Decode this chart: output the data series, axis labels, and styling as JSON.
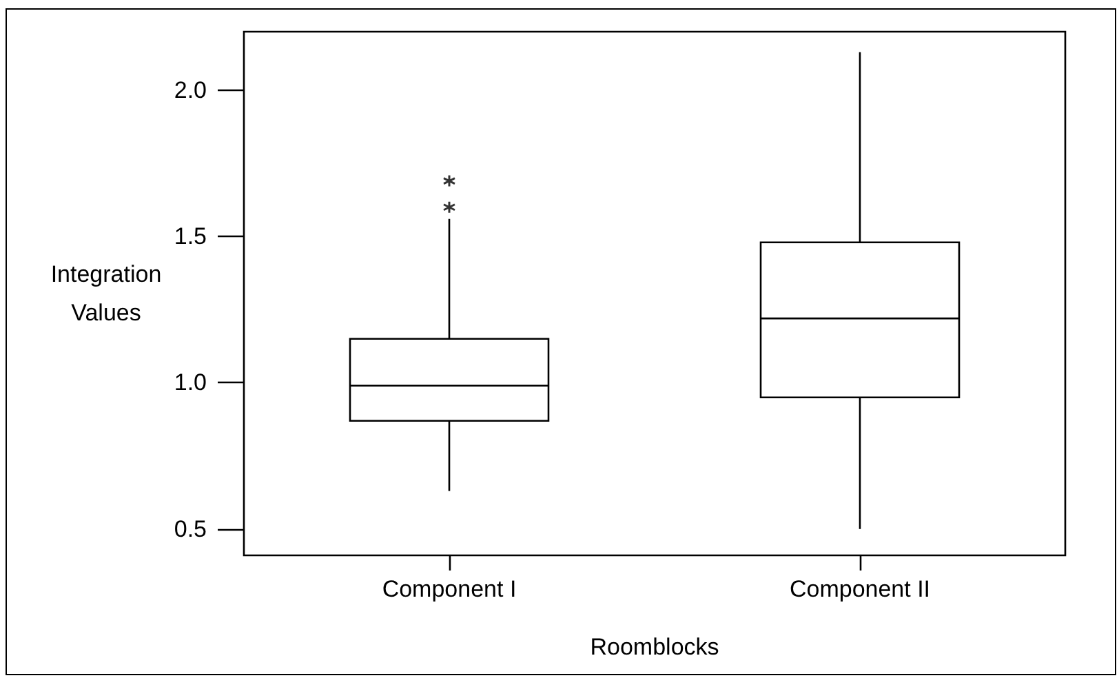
{
  "chart_data": {
    "type": "box",
    "xlabel": "Roomblocks",
    "ylabel": "Integration Values",
    "categories": [
      "Component I",
      "Component II"
    ],
    "boxes": [
      {
        "low": 0.63,
        "q1": 0.87,
        "median": 0.99,
        "q3": 1.15,
        "high": 1.56,
        "outliers": [
          1.6,
          1.69
        ]
      },
      {
        "low": 0.5,
        "q1": 0.95,
        "median": 1.22,
        "q3": 1.48,
        "high": 2.13
      }
    ],
    "color": "#000000",
    "ylim": [
      0.41,
      2.2
    ],
    "yticks": [
      0.5,
      {
        "value": 1,
        "label": "1.0"
      },
      1.5,
      {
        "value": 2,
        "label": "2.0"
      }
    ]
  }
}
